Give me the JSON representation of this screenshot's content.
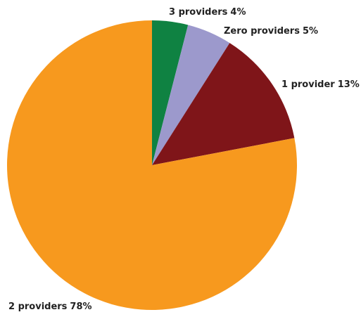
{
  "chart_data": {
    "type": "pie",
    "categories": [
      "3 providers",
      "Zero providers",
      "1 provider",
      "2 providers"
    ],
    "values": [
      4,
      5,
      13,
      78
    ],
    "value_labels": [
      "4%",
      "5%",
      "13%",
      "78%"
    ],
    "colors": [
      "#0f8242",
      "#9c99cc",
      "#7f1519",
      "#f7991e"
    ]
  }
}
